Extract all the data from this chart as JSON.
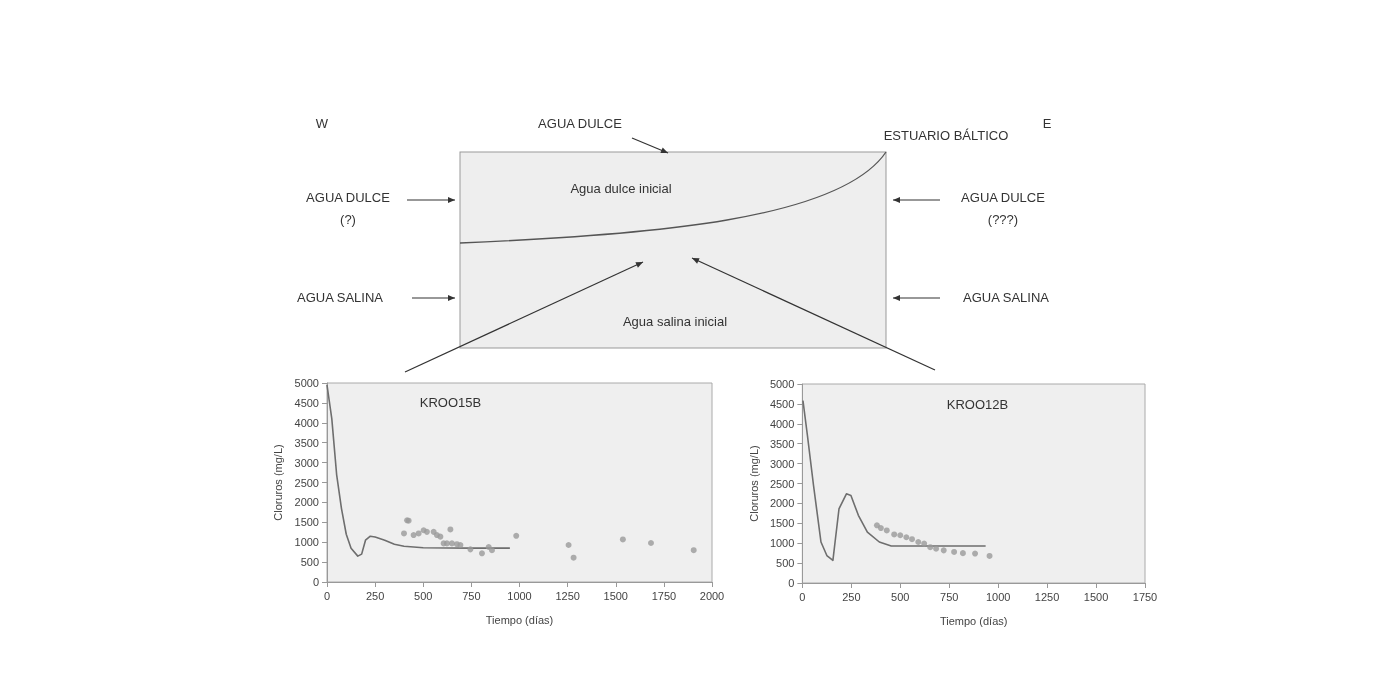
{
  "chart_data": [
    {
      "type": "other",
      "annotations": [
        "W",
        "AGUA DULCE",
        "E",
        "ESTUARIO BÁLTICO",
        "AGUA DULCE\n(?)",
        "AGUA DULCE\n(???)",
        "AGUA SALINA",
        "AGUA SALINA",
        "Agua dulce inicial",
        "Agua salina inicial"
      ]
    },
    {
      "type": "scatter",
      "xlabel": "Tiempo (días)",
      "ylabel": "Cloruros (mg/L)",
      "xlim": [
        0,
        2000
      ],
      "xticks": [
        0,
        250,
        500,
        750,
        1000,
        1250,
        1500,
        1750,
        2000
      ],
      "ylim": [
        0,
        5000
      ],
      "yticks": [
        0,
        500,
        1000,
        1500,
        2000,
        2500,
        3000,
        3500,
        4000,
        4500,
        5000
      ],
      "grid": false,
      "annotations": [
        "KROO15B"
      ],
      "series": [
        {
          "type": "line",
          "color": "#6e6e6e",
          "marker": "none",
          "x": [
            0,
            25,
            50,
            75,
            100,
            125,
            160,
            180,
            200,
            225,
            250,
            300,
            350,
            400,
            500,
            750,
            950
          ],
          "values": [
            4950,
            4100,
            2700,
            1850,
            1200,
            850,
            650,
            700,
            1050,
            1150,
            1130,
            1050,
            950,
            900,
            860,
            850,
            850
          ]
        },
        {
          "type": "scatter",
          "color": "#9a9a9a",
          "marker": "circle",
          "x": [
            416,
            424,
            400,
            450,
            476,
            502,
            519,
            554,
            571,
            589,
            641,
            606,
            623,
            649,
            675,
            693,
            745,
            805,
            840,
            857,
            983,
            1255,
            1281,
            1537,
            1683,
            1905
          ],
          "values": [
            1550,
            1540,
            1220,
            1180,
            1220,
            1300,
            1260,
            1260,
            1180,
            1140,
            1320,
            970,
            970,
            970,
            950,
            930,
            820,
            720,
            880,
            800,
            1160,
            930,
            610,
            1070,
            980,
            800
          ]
        }
      ]
    },
    {
      "type": "scatter",
      "xlabel": "Tiempo (días)",
      "ylabel": "Cloruros (mg/L)",
      "xlim": [
        0,
        1750
      ],
      "xticks": [
        0,
        250,
        500,
        750,
        1000,
        1250,
        1500,
        1750
      ],
      "ylim": [
        0,
        5000
      ],
      "yticks": [
        0,
        500,
        1000,
        1500,
        2000,
        2500,
        3000,
        3500,
        4000,
        4500,
        5000
      ],
      "grid": false,
      "annotations": [
        "KROO12B"
      ],
      "series": [
        {
          "type": "line",
          "color": "#6e6e6e",
          "marker": "none",
          "x": [
            3,
            26,
            57,
            95,
            125,
            156,
            167,
            187,
            225,
            248,
            286,
            332,
            393,
            454,
            638,
            936
          ],
          "values": [
            4580,
            3700,
            2450,
            1030,
            690,
            570,
            1030,
            1860,
            2240,
            2200,
            1700,
            1280,
            1030,
            930,
            930,
            930
          ]
        },
        {
          "type": "scatter",
          "color": "#9a9a9a",
          "marker": "circle",
          "x": [
            381,
            401,
            431,
            469,
            500,
            531,
            560,
            592,
            622,
            653,
            683,
            722,
            775,
            820,
            882,
            956
          ],
          "values": [
            1450,
            1380,
            1320,
            1220,
            1200,
            1150,
            1100,
            1030,
            990,
            900,
            860,
            820,
            780,
            750,
            740,
            680
          ]
        }
      ]
    }
  ]
}
